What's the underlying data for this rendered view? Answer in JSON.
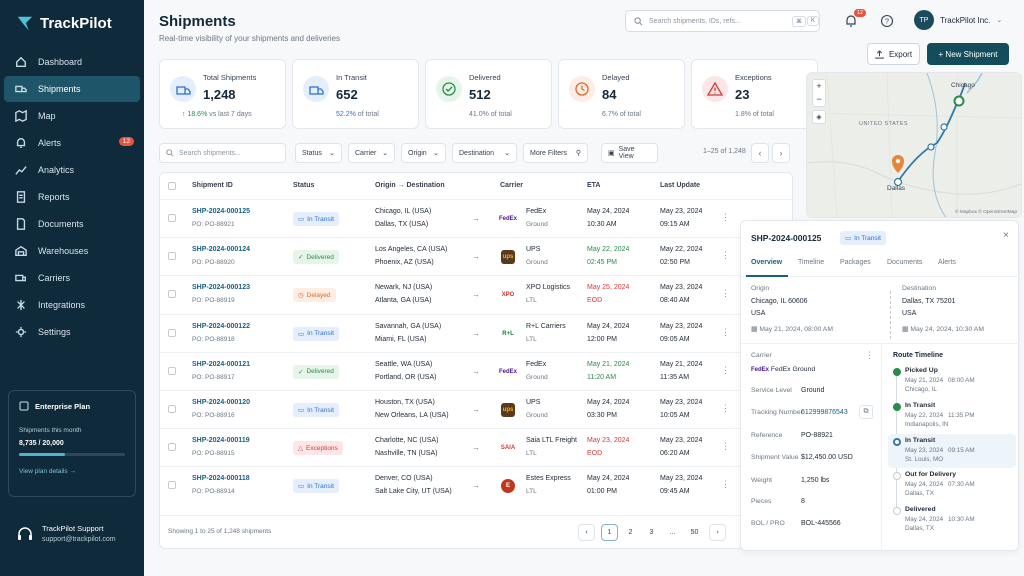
{
  "app": {
    "name": "TrackPilot"
  },
  "sidebar": {
    "items": [
      {
        "label": "Dashboard",
        "icon": "home-icon"
      },
      {
        "label": "Shipments",
        "icon": "truck-icon"
      },
      {
        "label": "Map",
        "icon": "map-icon"
      },
      {
        "label": "Alerts",
        "icon": "bell-icon",
        "badge": "12"
      },
      {
        "label": "Analytics",
        "icon": "chart-icon"
      },
      {
        "label": "Reports",
        "icon": "report-icon"
      },
      {
        "label": "Documents",
        "icon": "document-icon"
      },
      {
        "label": "Warehouses",
        "icon": "warehouse-icon"
      },
      {
        "label": "Carriers",
        "icon": "carrier-icon"
      },
      {
        "label": "Integrations",
        "icon": "integration-icon"
      },
      {
        "label": "Settings",
        "icon": "gear-icon"
      }
    ],
    "plan": {
      "title": "Enterprise Plan",
      "label": "Shipments this month",
      "value": "8,735 / 20,000",
      "progress": 0.437,
      "link": "View plan details →"
    },
    "support": {
      "name": "TrackPilot Support",
      "email": "support@trackpilot.com"
    }
  },
  "header": {
    "title": "Shipments",
    "subtitle": "Real-time visibility of your shipments and deliveries",
    "search_placeholder": "Search shipments, IDs, refs...",
    "kbd1": "⌘",
    "kbd2": "K",
    "notif_count": "12",
    "user": "TrackPilot Inc.",
    "initials": "TP",
    "export": "Export",
    "new": "+ New Shipment"
  },
  "kpis": [
    {
      "label": "Total Shipments",
      "value": "1,248",
      "sub_hl": "↑ 18.6%",
      "sub": " vs last 7 days",
      "icon": "truck-icon",
      "color": "#2f6fd0",
      "bg": "#e4eefc"
    },
    {
      "label": "In Transit",
      "value": "652",
      "sub_hl": "52.2%",
      "sub": " of total",
      "icon": "truck-icon",
      "color": "#2f6fd0",
      "bg": "#e4eefc"
    },
    {
      "label": "Delivered",
      "value": "512",
      "sub_hl": "",
      "sub": "41.0% of total",
      "icon": "check-icon",
      "color": "#2c8a4a",
      "bg": "#e5f5ea"
    },
    {
      "label": "Delayed",
      "value": "84",
      "sub_hl": "",
      "sub": "6.7% of total",
      "icon": "clock-icon",
      "color": "#d76b2b",
      "bg": "#fdede3"
    },
    {
      "label": "Exceptions",
      "value": "23",
      "sub_hl": "",
      "sub": "1.8% of total",
      "icon": "warning-icon",
      "color": "#d23b3b",
      "bg": "#fde6e6"
    }
  ],
  "filters": {
    "search_placeholder": "Search shipments...",
    "status": "Status",
    "carrier": "Carrier",
    "origin": "Origin",
    "destination": "Destination",
    "more": "More Filters",
    "save": "Save View",
    "range": "1–25 of 1,248"
  },
  "table": {
    "headers": {
      "id": "Shipment ID",
      "status": "Status",
      "route": "Origin → Destination",
      "carrier": "Carrier",
      "eta": "ETA",
      "update": "Last Update"
    },
    "rows": [
      {
        "id": "SHP-2024-000125",
        "po": "PO: PO-88921",
        "status": "In Transit",
        "scls": "b-transit",
        "origin": "Chicago, IL (USA)",
        "dest": "Dallas, TX (USA)",
        "carrier": "FedEx",
        "svc": "Ground",
        "logo": "FedEx",
        "lc": "#4d148c",
        "eta_d": "May 24, 2024",
        "eta_t": "10:30 AM",
        "ecls": "",
        "upd_d": "May 23, 2024",
        "upd_t": "09:15 AM"
      },
      {
        "id": "SHP-2024-000124",
        "po": "PO: PO-88920",
        "status": "Delivered",
        "scls": "b-delivered",
        "origin": "Los Angeles, CA (USA)",
        "dest": "Phoenix, AZ (USA)",
        "carrier": "UPS",
        "svc": "Ground",
        "logo": "ups",
        "lc": "#5a3a1c",
        "eta_d": "May 22, 2024",
        "eta_t": "02:45 PM",
        "ecls": "green",
        "upd_d": "May 22, 2024",
        "upd_t": "02:50 PM"
      },
      {
        "id": "SHP-2024-000123",
        "po": "PO: PO-88919",
        "status": "Delayed",
        "scls": "b-delayed",
        "origin": "Newark, NJ (USA)",
        "dest": "Atlanta, GA (USA)",
        "carrier": "XPO Logistics",
        "svc": "LTL",
        "logo": "XPO",
        "lc": "#d23b3b",
        "eta_d": "May 25, 2024",
        "eta_t": "EOD",
        "ecls": "red",
        "upd_d": "May 23, 2024",
        "upd_t": "08:40 AM"
      },
      {
        "id": "SHP-2024-000122",
        "po": "PO: PO-88918",
        "status": "In Transit",
        "scls": "b-transit",
        "origin": "Savannah, GA (USA)",
        "dest": "Miami, FL (USA)",
        "carrier": "R+L Carriers",
        "svc": "LTL",
        "logo": "R+L",
        "lc": "#1c7a3a",
        "eta_d": "May 24, 2024",
        "eta_t": "12:00 PM",
        "ecls": "",
        "upd_d": "May 23, 2024",
        "upd_t": "09:05 AM"
      },
      {
        "id": "SHP-2024-000121",
        "po": "PO: PO-88917",
        "status": "Delivered",
        "scls": "b-delivered",
        "origin": "Seattle, WA (USA)",
        "dest": "Portland, OR (USA)",
        "carrier": "FedEx",
        "svc": "Ground",
        "logo": "FedEx",
        "lc": "#4d148c",
        "eta_d": "May 21, 2024",
        "eta_t": "11:20 AM",
        "ecls": "green",
        "upd_d": "May 21, 2024",
        "upd_t": "11:35 AM"
      },
      {
        "id": "SHP-2024-000120",
        "po": "PO: PO-88916",
        "status": "In Transit",
        "scls": "b-transit",
        "origin": "Houston, TX (USA)",
        "dest": "New Orleans, LA (USA)",
        "carrier": "UPS",
        "svc": "Ground",
        "logo": "ups",
        "lc": "#5a3a1c",
        "eta_d": "May 24, 2024",
        "eta_t": "03:30 PM",
        "ecls": "",
        "upd_d": "May 23, 2024",
        "upd_t": "10:05 AM"
      },
      {
        "id": "SHP-2024-000119",
        "po": "PO: PO-88915",
        "status": "Exceptions",
        "scls": "b-exc",
        "origin": "Charlotte, NC (USA)",
        "dest": "Nashville, TN (USA)",
        "carrier": "Saia LTL Freight",
        "svc": "LTL",
        "logo": "SAIA",
        "lc": "#d23b3b",
        "eta_d": "May 23, 2024",
        "eta_t": "EOD",
        "ecls": "red",
        "upd_d": "May 23, 2024",
        "upd_t": "06:20 AM"
      },
      {
        "id": "SHP-2024-000118",
        "po": "PO: PO-88914",
        "status": "In Transit",
        "scls": "b-transit",
        "origin": "Denver, CO (USA)",
        "dest": "Salt Lake City, UT (USA)",
        "carrier": "Estes Express",
        "svc": "LTL",
        "logo": "E",
        "lc": "#c2361c",
        "eta_d": "May 24, 2024",
        "eta_t": "01:00 PM",
        "ecls": "",
        "upd_d": "May 23, 2024",
        "upd_t": "09:45 AM"
      }
    ],
    "footer": "Showing 1 to 25 of 1,248 shipments",
    "pages": [
      "1",
      "2",
      "3",
      "...",
      "50"
    ]
  },
  "map": {
    "labels": {
      "chicago": "Chicago",
      "dallas": "Dallas",
      "us": "UNITED STATES"
    },
    "attrib": "© Mapbox © OpenStreetMap"
  },
  "detail": {
    "id": "SHP-2024-000125",
    "status": "In Transit",
    "tabs": [
      "Overview",
      "Timeline",
      "Packages",
      "Documents",
      "Alerts"
    ],
    "origin_label": "Origin",
    "origin_addr": "Chicago, IL 60606",
    "origin_country": "USA",
    "origin_date": "May 21, 2024, 08:00 AM",
    "dest_label": "Destination",
    "dest_addr": "Dallas, TX 75201",
    "dest_country": "USA",
    "dest_date": "May 24, 2024, 10:30 AM",
    "carrier_label": "Carrier",
    "carrier": "FedEx Ground",
    "fields": [
      {
        "k": "Service Level",
        "v": "Ground"
      },
      {
        "k": "Tracking Number",
        "v": "612999876543"
      },
      {
        "k": "Reference",
        "v": "PO-88921"
      },
      {
        "k": "Shipment Value",
        "v": "$12,450.00 USD"
      },
      {
        "k": "Weight",
        "v": "1,250 lbs"
      },
      {
        "k": "Pieces",
        "v": "8"
      },
      {
        "k": "BOL / PRO",
        "v": "BOL-445566"
      }
    ],
    "timeline_title": "Route Timeline",
    "timeline": [
      {
        "t": "Picked Up",
        "d": "May 21, 2024",
        "h": "08:00 AM",
        "p": "Chicago, IL",
        "state": "done"
      },
      {
        "t": "In Transit",
        "d": "May 22, 2024",
        "h": "11:35 PM",
        "p": "Indianapolis, IN",
        "state": "done"
      },
      {
        "t": "In Transit",
        "d": "May 23, 2024",
        "h": "09:15 AM",
        "p": "St. Louis, MO",
        "state": "current"
      },
      {
        "t": "Out for Delivery",
        "d": "May 24, 2024",
        "h": "07:30 AM",
        "p": "Dallas, TX",
        "state": "pending"
      },
      {
        "t": "Delivered",
        "d": "May 24, 2024",
        "h": "10:30 AM",
        "p": "Dallas, TX",
        "state": "pending"
      }
    ]
  }
}
